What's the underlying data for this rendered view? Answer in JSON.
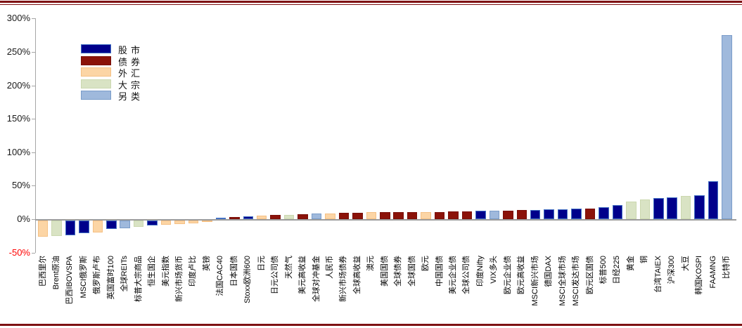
{
  "frame": {
    "border_color": "#7E1113",
    "background": "#FFFFFF"
  },
  "axis": {
    "line_color": "#A6A6A6",
    "zero_line_color": "#9B9B9B",
    "tick_label_color": "#1A1A1A",
    "negative_tick_color": "#FF0000"
  },
  "chart_data": {
    "type": "bar",
    "title": "",
    "xlabel": "",
    "ylabel": "",
    "ylim": [
      -50,
      300
    ],
    "grid": false,
    "legend_position": "upper-left-inside",
    "yticks": [
      {
        "label": "300%",
        "value": 300
      },
      {
        "label": "250%",
        "value": 250
      },
      {
        "label": "200%",
        "value": 200
      },
      {
        "label": "150%",
        "value": 150
      },
      {
        "label": "100%",
        "value": 100
      },
      {
        "label": "50%",
        "value": 50
      },
      {
        "label": "0%",
        "value": 0
      },
      {
        "label": "-50%",
        "value": -50
      }
    ],
    "legend": [
      {
        "key": "equity",
        "label": "股市",
        "color": "#00008B",
        "stroke": "#4472C4"
      },
      {
        "key": "bond",
        "label": "债券",
        "color": "#8B1209",
        "stroke": "#7A0F08"
      },
      {
        "key": "fx",
        "label": "外汇",
        "color": "#FCD5A5",
        "stroke": "#F5C084"
      },
      {
        "key": "commodity",
        "label": "大宗",
        "color": "#D9E3C4",
        "stroke": "#CBD8AF"
      },
      {
        "key": "alternative",
        "label": "另类",
        "color": "#9FB9DC",
        "stroke": "#7A9CC9"
      }
    ],
    "series": [
      {
        "label": "巴西里尔",
        "value": -24,
        "cat": "fx"
      },
      {
        "label": "Brent原油",
        "value": -23,
        "cat": "commodity"
      },
      {
        "label": "巴西IBOVSPA",
        "value": -22,
        "cat": "equity"
      },
      {
        "label": "MSCI俄罗斯",
        "value": -19,
        "cat": "equity"
      },
      {
        "label": "俄罗斯卢布",
        "value": -18,
        "cat": "fx"
      },
      {
        "label": "英国富时100",
        "value": -13,
        "cat": "equity"
      },
      {
        "label": "全球REITs",
        "value": -12,
        "cat": "alternative"
      },
      {
        "label": "标普大宗商品",
        "value": -9,
        "cat": "commodity"
      },
      {
        "label": "恒生国企",
        "value": -7,
        "cat": "equity"
      },
      {
        "label": "美元指数",
        "value": -6,
        "cat": "fx"
      },
      {
        "label": "新兴市场货币",
        "value": -5,
        "cat": "fx"
      },
      {
        "label": "印度卢比",
        "value": -4,
        "cat": "fx"
      },
      {
        "label": "英镑",
        "value": -2,
        "cat": "fx"
      },
      {
        "label": "法国CAC40",
        "value": 2,
        "cat": "equity"
      },
      {
        "label": "日本国债",
        "value": 3,
        "cat": "bond"
      },
      {
        "label": "Stoxx欧洲600",
        "value": 4,
        "cat": "equity"
      },
      {
        "label": "日元",
        "value": 5,
        "cat": "fx"
      },
      {
        "label": "日元公司债",
        "value": 6,
        "cat": "bond"
      },
      {
        "label": "天然气",
        "value": 6,
        "cat": "commodity"
      },
      {
        "label": "美元高收益",
        "value": 7,
        "cat": "bond"
      },
      {
        "label": "全球对冲基金",
        "value": 8,
        "cat": "alternative"
      },
      {
        "label": "人民币",
        "value": 8,
        "cat": "fx"
      },
      {
        "label": "新兴市场债券",
        "value": 9,
        "cat": "bond"
      },
      {
        "label": "全球高收益",
        "value": 9,
        "cat": "bond"
      },
      {
        "label": "澳元",
        "value": 10,
        "cat": "fx"
      },
      {
        "label": "美国国债",
        "value": 10,
        "cat": "bond"
      },
      {
        "label": "全球债券",
        "value": 10,
        "cat": "bond"
      },
      {
        "label": "全球国债",
        "value": 11,
        "cat": "bond"
      },
      {
        "label": "欧元",
        "value": 11,
        "cat": "fx"
      },
      {
        "label": "中国国债",
        "value": 11,
        "cat": "bond"
      },
      {
        "label": "美元企业债",
        "value": 12,
        "cat": "bond"
      },
      {
        "label": "全球公司债",
        "value": 12,
        "cat": "bond"
      },
      {
        "label": "印度Nifty",
        "value": 13,
        "cat": "equity"
      },
      {
        "label": "VIX多头",
        "value": 13,
        "cat": "alternative"
      },
      {
        "label": "欧元企业债",
        "value": 13,
        "cat": "bond"
      },
      {
        "label": "欧元高收益",
        "value": 14,
        "cat": "bond"
      },
      {
        "label": "MSCI新兴市场",
        "value": 14,
        "cat": "equity"
      },
      {
        "label": "德国DAX",
        "value": 15,
        "cat": "equity"
      },
      {
        "label": "MSCI全球市场",
        "value": 15,
        "cat": "equity"
      },
      {
        "label": "MSCI发达市场",
        "value": 16,
        "cat": "equity"
      },
      {
        "label": "欧元区国债",
        "value": 16,
        "cat": "bond"
      },
      {
        "label": "标普500",
        "value": 18,
        "cat": "equity"
      },
      {
        "label": "日经225",
        "value": 21,
        "cat": "equity"
      },
      {
        "label": "黄金",
        "value": 26,
        "cat": "commodity"
      },
      {
        "label": "铜",
        "value": 29,
        "cat": "commodity"
      },
      {
        "label": "台湾TAIEX",
        "value": 31,
        "cat": "equity"
      },
      {
        "label": "沪深300",
        "value": 33,
        "cat": "equity"
      },
      {
        "label": "大豆",
        "value": 35,
        "cat": "commodity"
      },
      {
        "label": "韩国KOSPI",
        "value": 36,
        "cat": "equity"
      },
      {
        "label": "FAAMNG",
        "value": 57,
        "cat": "equity"
      },
      {
        "label": "比特币",
        "value": 275,
        "cat": "alternative"
      }
    ]
  }
}
